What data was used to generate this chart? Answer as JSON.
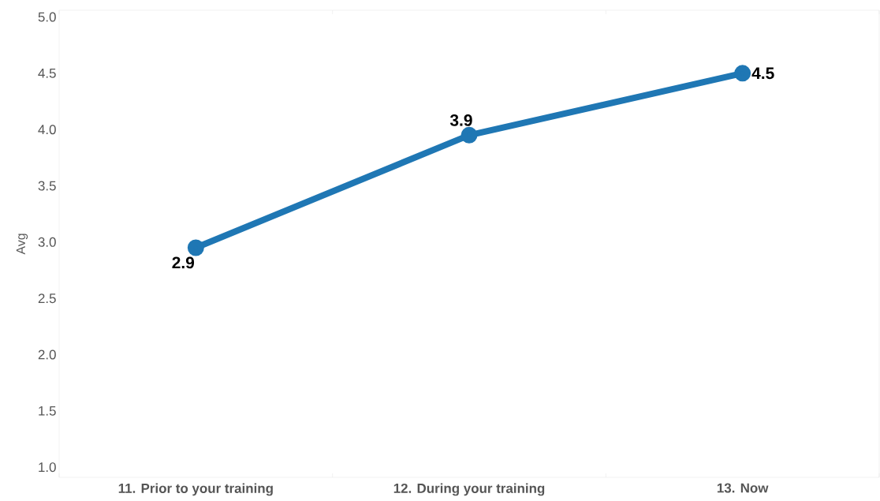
{
  "chart_data": {
    "type": "line",
    "ylabel": "Avg",
    "categories": [
      "11. Prior to your training",
      "12. During your training",
      "13. Now"
    ],
    "values": [
      2.95,
      3.95,
      4.5
    ],
    "value_labels": [
      "2.9",
      "3.9",
      "4.5"
    ],
    "color": "#1f77b4",
    "marker": "circle",
    "line_style": "solid",
    "ylim": [
      0.91,
      5.06
    ],
    "yticks": [
      {
        "value": 1,
        "label": "1.0"
      },
      {
        "value": 1.5,
        "label": "1.5"
      },
      {
        "value": 2,
        "label": "2.0"
      },
      {
        "value": 2.5,
        "label": "2.5"
      },
      {
        "value": 3,
        "label": "3.0"
      },
      {
        "value": 3.5,
        "label": "3.5"
      },
      {
        "value": 4,
        "label": "4.0"
      },
      {
        "value": 4.5,
        "label": "4.5"
      },
      {
        "value": 5,
        "label": "5.0"
      }
    ],
    "grid": false
  }
}
